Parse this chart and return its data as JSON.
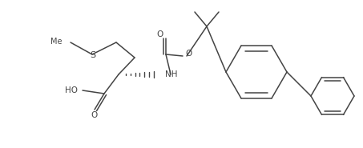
{
  "bg_color": "#ffffff",
  "line_color": "#444444",
  "line_width": 1.1,
  "figsize": [
    4.53,
    1.85
  ],
  "dpi": 100,
  "xlim": [
    0,
    453
  ],
  "ylim": [
    0,
    185
  ]
}
